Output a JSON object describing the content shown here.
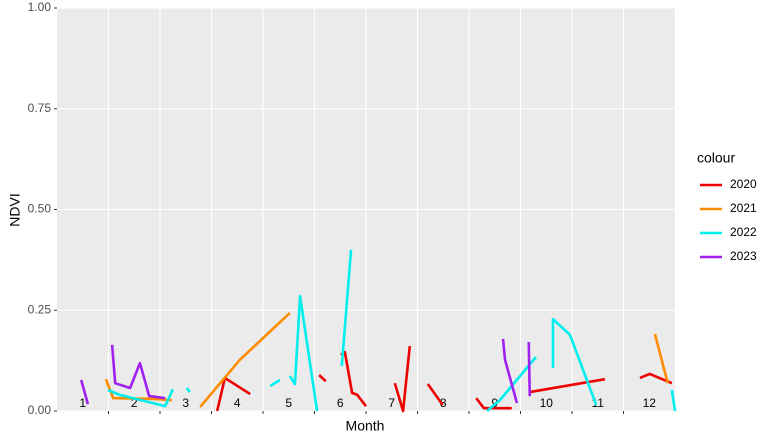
{
  "chart_data": {
    "type": "line",
    "x_label": "Month",
    "y_label": "NDVI",
    "legend_title": "colour",
    "legend_position": "right",
    "grid": true,
    "xlim": [
      0.5,
      12.5
    ],
    "xticks": [
      1,
      2,
      3,
      4,
      5,
      6,
      7,
      8,
      9,
      10,
      11,
      12
    ],
    "ylim": [
      0,
      1
    ],
    "yticks": [
      {
        "value": 0,
        "label": "0.00"
      },
      {
        "value": 0.25,
        "label": "0.25"
      },
      {
        "value": 0.5,
        "label": "0.50"
      },
      {
        "value": 0.75,
        "label": "0.75"
      },
      {
        "value": 1,
        "label": "1.00"
      }
    ],
    "series": [
      {
        "name": "2020",
        "color": "#ee0000",
        "x": [
          3.61,
          3.76,
          4.25,
          null,
          5.59,
          5.72,
          null,
          6.01,
          6.09,
          6.23,
          6.33,
          6.5,
          null,
          7.06,
          7.22,
          7.35,
          null,
          7.7,
          7.99,
          null,
          8.64,
          8.79,
          9.33,
          null,
          9.68,
          11.14,
          null,
          11.82,
          12.01,
          12.44
        ],
        "values": [
          0,
          0.082,
          0.042,
          null,
          0.089,
          0.074,
          null,
          0.139,
          0.146,
          0.045,
          0.04,
          0.012,
          null,
          0.069,
          0,
          0.161,
          null,
          0.067,
          0.015,
          null,
          0.032,
          0.007,
          0.007,
          null,
          0.047,
          0.079,
          null,
          0.082,
          0.092,
          0.069
        ]
      },
      {
        "name": "2021",
        "color": "#ff8c00",
        "x": [
          1.45,
          1.59,
          2.36,
          2.73,
          null,
          3.28,
          4.05,
          5.02,
          null,
          12.11,
          12.36
        ],
        "values": [
          0.079,
          0.032,
          0.03,
          0.027,
          null,
          0.01,
          0.127,
          0.243,
          null,
          0.191,
          0.069
        ]
      },
      {
        "name": "2022",
        "color": "#00eeee",
        "x": [
          1.49,
          1.72,
          2.6,
          2.75,
          null,
          3.02,
          3.08,
          null,
          4.64,
          4.83,
          null,
          5.02,
          5.12,
          5.22,
          5.55,
          null,
          6.03,
          6.21,
          null,
          8.85,
          9.1,
          9.8,
          null,
          10.13,
          10.13,
          10.46,
          10.97,
          null,
          12.44,
          12.5
        ],
        "values": [
          0.052,
          0.04,
          0.012,
          0.054,
          null,
          0.057,
          0.047,
          null,
          0.062,
          0.077,
          null,
          0.087,
          0.067,
          0.285,
          0,
          null,
          0.112,
          0.4,
          null,
          0,
          0.027,
          0.134,
          null,
          0.107,
          0.228,
          0.189,
          0.015,
          null,
          0.052,
          0
        ]
      },
      {
        "name": "2023",
        "color": "#a020f0",
        "x": [
          0.97,
          1.1,
          null,
          1.57,
          1.63,
          1.92,
          2.11,
          2.29,
          2.6,
          null,
          9.16,
          9.2,
          9.43,
          null,
          9.66,
          9.68
        ],
        "values": [
          0.077,
          0.017,
          null,
          0.164,
          0.069,
          0.057,
          0.119,
          0.037,
          0.032,
          null,
          0.179,
          0.127,
          0.02,
          null,
          0.171,
          0.037
        ]
      }
    ]
  }
}
